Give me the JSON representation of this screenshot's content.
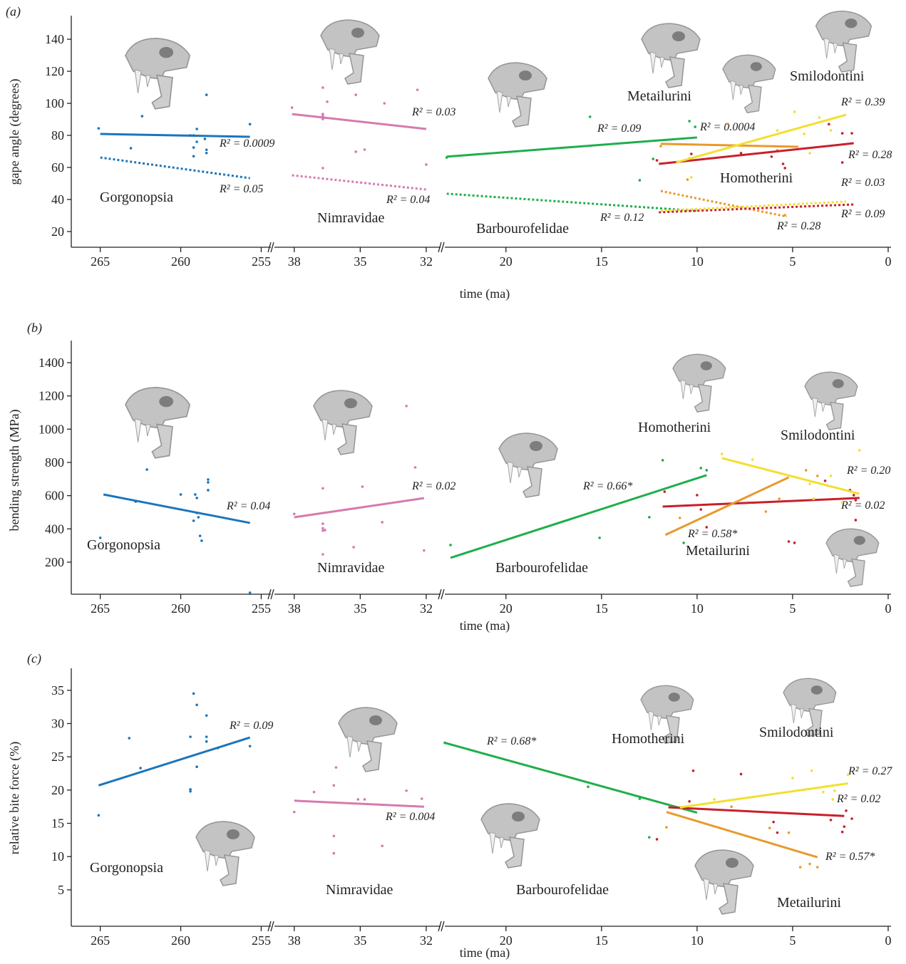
{
  "chart_data": [
    {
      "type": "scatter",
      "panel_label": "(a)",
      "y_label": "gape angle (degrees)",
      "x_label": "time (ma)",
      "x_segments": [
        {
          "xlim": [
            266.8,
            254.4
          ],
          "xticks": [
            265,
            260,
            255
          ]
        },
        {
          "xlim": [
            38.9,
            31.35
          ],
          "xticks": [
            38,
            35,
            32
          ]
        },
        {
          "xlim": [
            23.2,
            -0.15
          ],
          "xticks": [
            20,
            15,
            10,
            5,
            0
          ]
        }
      ],
      "ylim": [
        10.2,
        154.7
      ],
      "yticks": [
        20,
        40,
        60,
        80,
        100,
        120,
        140
      ],
      "groups": [
        {
          "name": "Gorgonopsia",
          "color": "#1b75bb",
          "x": [
            265.1,
            263.1,
            262.4,
            258.4,
            259.4,
            259.2,
            259,
            259,
            259.2,
            258.5,
            258.4,
            258.4,
            255.7,
            259.2
          ],
          "y": [
            84.4,
            72,
            92,
            105.3,
            80,
            80,
            84,
            76,
            72.4,
            77.8,
            71,
            69,
            87,
            67
          ],
          "fits": [
            {
              "x": [
                265,
                255.7
              ],
              "y": [
                80.9,
                79.1
              ],
              "style": "solid",
              "label": "R² = 0.0009"
            },
            {
              "x": [
                265,
                255.7
              ],
              "y": [
                66.2,
                53.3
              ],
              "style": "dotted",
              "label": "R² = 0.05"
            }
          ]
        },
        {
          "name": "Nimravidae",
          "color": "#d67aae",
          "x": [
            38.1,
            36.7,
            36.7,
            36.7,
            36.7,
            36.5,
            36.7,
            35.2,
            35.2,
            34.8,
            33.9,
            32.4,
            32
          ],
          "y": [
            97.3,
            109.8,
            93.3,
            92,
            90.2,
            101,
            59.6,
            105.3,
            69.8,
            71.1,
            100,
            108.4,
            61.8
          ],
          "fits": [
            {
              "x": [
                38.1,
                32
              ],
              "y": [
                93.3,
                84
              ],
              "style": "solid",
              "label": "R² = 0.03"
            },
            {
              "x": [
                38.1,
                32
              ],
              "y": [
                55.1,
                46.2
              ],
              "style": "dotted",
              "label": "R² = 0.04"
            }
          ]
        },
        {
          "name": "Barbourofelidae",
          "color": "#1fae4b",
          "x": [
            23.1,
            15.6,
            13,
            12.3,
            10.4,
            10.1
          ],
          "y": [
            66.2,
            91.6,
            52,
            65.3,
            88.9,
            85.3
          ],
          "fits": [
            {
              "x": [
                23.1,
                10
              ],
              "y": [
                66.7,
                78.7
              ],
              "style": "solid",
              "label": "R² = 0.09"
            },
            {
              "x": [
                23.1,
                10
              ],
              "y": [
                43.6,
                32.9
              ],
              "style": "dotted",
              "label": "R² = 0.12"
            }
          ]
        },
        {
          "name": "Metailurini",
          "color": "#e89a2c",
          "x": [
            11.9,
            10.5,
            8.4,
            5.8,
            5.4
          ],
          "y": [
            73.3,
            52.4,
            87.1,
            70.7,
            30.2
          ],
          "fits": [
            {
              "x": [
                11.9,
                4.7
              ],
              "y": [
                74.7,
                72.9
              ],
              "style": "solid",
              "label": "R² = 0.0004"
            },
            {
              "x": [
                11.9,
                5.3
              ],
              "y": [
                45.3,
                29.3
              ],
              "style": "dotted",
              "label": "R² = 0.28"
            }
          ]
        },
        {
          "name": "Homotherini",
          "color": "#c8202a",
          "x": [
            12.1,
            10.3,
            7.7,
            6.1,
            5.5,
            5.4,
            3.1,
            2.4,
            1.9,
            2.4
          ],
          "y": [
            64.4,
            68.4,
            68.9,
            66.7,
            62.2,
            59.6,
            87,
            81.3,
            81.3,
            63.1
          ],
          "fits": [
            {
              "x": [
                12,
                1.8
              ],
              "y": [
                62.2,
                75.1
              ],
              "style": "solid",
              "label": "R² = 0.28"
            },
            {
              "x": [
                12,
                1.8
              ],
              "y": [
                32,
                36.9
              ],
              "style": "dotted",
              "label": "R² = 0.09"
            }
          ]
        },
        {
          "name": "Smilodontini",
          "color": "#f3df2e",
          "x": [
            10.4,
            10.3,
            5.8,
            4.9,
            4.4,
            4.1,
            3.6,
            3
          ],
          "y": [
            65.8,
            53.8,
            83.1,
            94.7,
            80.9,
            68.9,
            91.1,
            83.1
          ],
          "fits": [
            {
              "x": [
                11.1,
                2.2
              ],
              "y": [
                63.1,
                92.9
              ],
              "style": "solid",
              "label": "R² = 0.39"
            },
            {
              "x": [
                11.9,
                2.2
              ],
              "y": [
                32.9,
                38.7
              ],
              "style": "dotted",
              "label": "R² = 0.03"
            }
          ]
        }
      ]
    },
    {
      "type": "scatter",
      "panel_label": "(b)",
      "y_label": "bending strength (MPa)",
      "x_label": "time (ma)",
      "x_segments": [
        {
          "xlim": [
            266.8,
            254.4
          ],
          "xticks": [
            265,
            260,
            255
          ]
        },
        {
          "xlim": [
            38.9,
            31.35
          ],
          "xticks": [
            38,
            35,
            32
          ]
        },
        {
          "xlim": [
            23.2,
            -0.15
          ],
          "xticks": [
            20,
            15,
            10,
            5,
            0
          ]
        }
      ],
      "ylim": [
        7,
        1533
      ],
      "yticks": [
        200,
        400,
        600,
        800,
        1000,
        1200,
        1400
      ],
      "groups": [
        {
          "name": "Gorgonopsia",
          "color": "#1b75bb",
          "x": [
            265,
            262.8,
            262.1,
            260,
            259.1,
            259,
            259,
            258.9,
            259.2,
            258.8,
            258.7,
            258.3,
            258.3,
            258.3,
            255.7
          ],
          "y": [
            346,
            564,
            757,
            607,
            607,
            586,
            496,
            470,
            449,
            358,
            329,
            697,
            680,
            633,
            16
          ],
          "fits": [
            {
              "x": [
                264.8,
                255.7
              ],
              "y": [
                607,
                436
              ],
              "style": "solid",
              "label": "R² = 0.04"
            }
          ]
        },
        {
          "name": "Nimravidae",
          "color": "#d67aae",
          "x": [
            38,
            36.7,
            36.7,
            36.7,
            36.7,
            36.6,
            36.7,
            35.3,
            34.9,
            34,
            32.9,
            32.5,
            32.1
          ],
          "y": [
            490,
            644,
            431,
            404,
            389,
            393,
            247,
            290,
            654,
            440,
            1139,
            770,
            270
          ],
          "fits": [
            {
              "x": [
                38,
                32.1
              ],
              "y": [
                470,
                585
              ],
              "style": "solid",
              "label": "R² = 0.02"
            }
          ]
        },
        {
          "name": "Barbourofelidae",
          "color": "#1fae4b",
          "x": [
            22.9,
            15.1,
            12.5,
            11.8,
            10.7,
            9.8,
            9.5
          ],
          "y": [
            303,
            346,
            470,
            813,
            316,
            766,
            753
          ],
          "fits": [
            {
              "x": [
                22.9,
                9.5
              ],
              "y": [
                226,
                723
              ],
              "style": "solid",
              "label": "R² = 0.66*"
            }
          ]
        },
        {
          "name": "Homotherini",
          "color": "#c8202a",
          "x": [
            11.7,
            10,
            9.8,
            9.5,
            5.2,
            4.9,
            3.3,
            2,
            1.8,
            1.7,
            1.7
          ],
          "y": [
            624,
            603,
            517,
            410,
            324,
            316,
            689,
            633,
            603,
            573,
            453
          ],
          "fits": [
            {
              "x": [
                11.8,
                1.5
              ],
              "y": [
                534,
                586
              ],
              "style": "solid",
              "label": "R² = 0.02"
            }
          ]
        },
        {
          "name": "Smilodontini",
          "color": "#f3df2e",
          "x": [
            8.7,
            7.1,
            4.1,
            3.9,
            3,
            2.4,
            1.5
          ],
          "y": [
            851,
            817,
            671,
            581,
            719,
            560,
            873
          ],
          "fits": [
            {
              "x": [
                8.7,
                1.5
              ],
              "y": [
                826,
                611
              ],
              "style": "solid",
              "label": "R² = 0.20"
            }
          ]
        },
        {
          "name": "Metailurini",
          "color": "#e89a2c",
          "x": [
            11.6,
            10.9,
            5.7,
            4.3,
            3.7,
            6.4
          ],
          "y": [
            367,
            466,
            581,
            753,
            719,
            504
          ],
          "fits": [
            {
              "x": [
                11.6,
                5.2
              ],
              "y": [
                367,
                710
              ],
              "style": "solid",
              "label": "R² = 0.58*"
            }
          ]
        }
      ]
    },
    {
      "type": "scatter",
      "panel_label": "(c)",
      "y_label": "relative bite force (%)",
      "x_label": "time (ma)",
      "x_segments": [
        {
          "xlim": [
            266.8,
            254.4
          ],
          "xticks": [
            265,
            260,
            255
          ]
        },
        {
          "xlim": [
            38.9,
            31.35
          ],
          "xticks": [
            38,
            35,
            32
          ]
        },
        {
          "xlim": [
            23.2,
            -0.15
          ],
          "xticks": [
            20,
            15,
            10,
            5,
            0
          ]
        }
      ],
      "ylim": [
        -0.47,
        38.3
      ],
      "yticks": [
        5,
        10,
        15,
        20,
        25,
        30,
        35
      ],
      "groups": [
        {
          "name": "Gorgonopsia",
          "color": "#1b75bb",
          "x": [
            265.1,
            263.2,
            262.5,
            259.4,
            259.4,
            259.4,
            259.2,
            259,
            259,
            258.4,
            258.4,
            258.4,
            257.7,
            255.7
          ],
          "y": [
            16.2,
            27.8,
            23.3,
            28,
            20.1,
            19.8,
            34.5,
            32.8,
            23.5,
            31.2,
            28,
            27.3,
            26.3,
            26.6
          ],
          "fits": [
            {
              "x": [
                265.1,
                255.7
              ],
              "y": [
                20.7,
                27.9
              ],
              "style": "solid",
              "label": "R² = 0.09"
            }
          ]
        },
        {
          "name": "Nimravidae",
          "color": "#d67aae",
          "x": [
            38,
            37.1,
            36.2,
            36.1,
            36.2,
            36.2,
            35.1,
            34.8,
            34,
            32.9,
            32.2
          ],
          "y": [
            16.7,
            19.7,
            20.7,
            23.4,
            13.1,
            10.5,
            18.6,
            18.6,
            11.6,
            19.9,
            18.7
          ],
          "fits": [
            {
              "x": [
                38,
                32.1
              ],
              "y": [
                18.4,
                17.5
              ],
              "style": "solid",
              "label": "R² = 0.004"
            }
          ]
        },
        {
          "name": "Barbourofelidae",
          "color": "#1fae4b",
          "x": [
            23.2,
            15.7,
            13,
            12.5
          ],
          "y": [
            27.1,
            20.5,
            18.7,
            12.9
          ],
          "fits": [
            {
              "x": [
                23.2,
                10
              ],
              "y": [
                27.1,
                16.6
              ],
              "style": "solid",
              "label": "R² = 0.68*"
            }
          ]
        },
        {
          "name": "Homotherini",
          "color": "#c8202a",
          "x": [
            12.1,
            10.2,
            10.4,
            7.7,
            6,
            5.8,
            3,
            2.3,
            2.2,
            1.9,
            2.4
          ],
          "y": [
            12.6,
            22.9,
            18.3,
            22.4,
            15.2,
            13.6,
            15.5,
            14.5,
            16.9,
            15.7,
            13.7
          ],
          "fits": [
            {
              "x": [
                11.5,
                2.3
              ],
              "y": [
                17.4,
                16.1
              ],
              "style": "solid",
              "label": "R² = 0.02"
            }
          ]
        },
        {
          "name": "Smilodontini",
          "color": "#f3df2e",
          "x": [
            10.8,
            9.1,
            5,
            4,
            3.4,
            2.8,
            2.1,
            2.9
          ],
          "y": [
            17.4,
            18.6,
            21.8,
            22.9,
            19.7,
            19.9,
            22.3,
            18.6
          ],
          "fits": [
            {
              "x": [
                10.9,
                2.1
              ],
              "y": [
                17.4,
                21
              ],
              "style": "solid",
              "label": "R² = 0.27"
            }
          ]
        },
        {
          "name": "Metailurini",
          "color": "#e89a2c",
          "x": [
            11.6,
            8.2,
            6.2,
            5.2,
            4.6,
            4.1,
            3.7
          ],
          "y": [
            14.4,
            17.5,
            14.3,
            13.6,
            8.4,
            8.9,
            8.4
          ],
          "fits": [
            {
              "x": [
                11.6,
                3.7
              ],
              "y": [
                16.7,
                9.9
              ],
              "style": "solid",
              "label": "R² = 0.57*"
            }
          ]
        }
      ]
    }
  ]
}
